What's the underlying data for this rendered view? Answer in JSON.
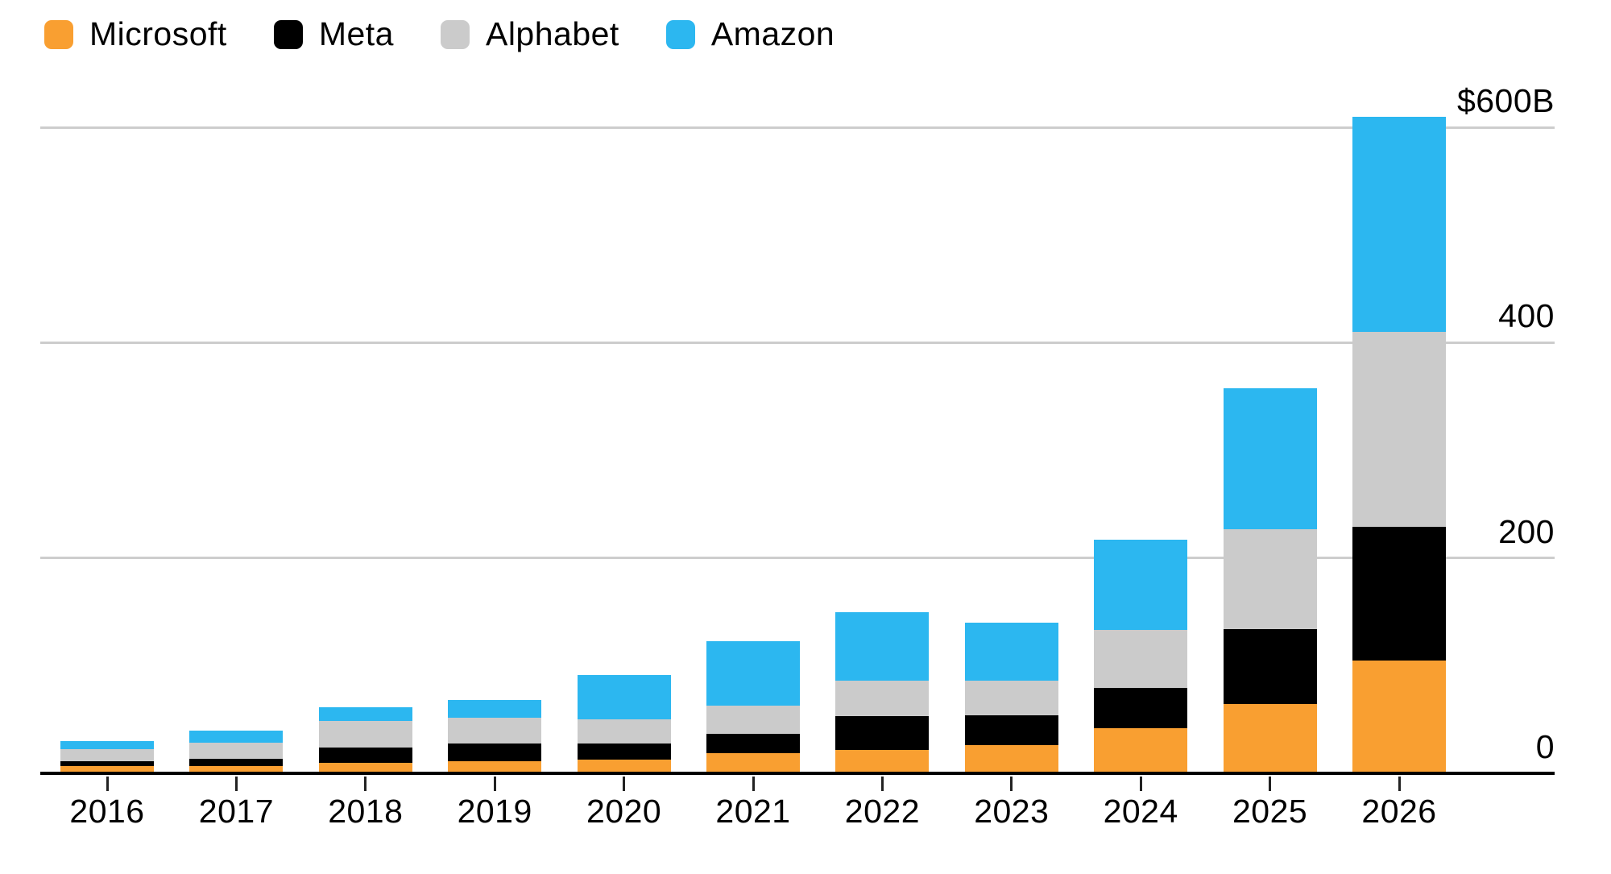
{
  "app": {
    "background": "#ffffff",
    "text_color": "#000000"
  },
  "chart_data": {
    "type": "bar",
    "stacked": true,
    "title": "",
    "categories": [
      "2016",
      "2017",
      "2018",
      "2019",
      "2020",
      "2021",
      "2022",
      "2023",
      "2024",
      "2025",
      "2026"
    ],
    "series": [
      {
        "name": "Microsoft",
        "color": "#F99F31",
        "values": [
          7,
          7,
          10,
          11.5,
          13,
          19,
          22,
          26,
          42,
          64,
          105
        ]
      },
      {
        "name": "Meta",
        "color": "#000000",
        "values": [
          4.5,
          6.5,
          14,
          16,
          15,
          18,
          31,
          28,
          37.5,
          70,
          124
        ]
      },
      {
        "name": "Alphabet",
        "color": "#CBCBCB",
        "values": [
          11,
          15,
          25,
          24.5,
          22.5,
          25.5,
          33,
          32,
          54,
          93,
          181
        ]
      },
      {
        "name": "Amazon",
        "color": "#2CB7F0",
        "values": [
          7.5,
          11.5,
          12.5,
          16,
          40.5,
          60.5,
          63.5,
          54,
          83.5,
          131,
          200
        ]
      }
    ],
    "totals": [
      30,
      40,
      61.5,
      68,
      91,
      123,
      149.5,
      140,
      217,
      358,
      610
    ],
    "xlabel": "",
    "ylabel": "",
    "ylim": [
      0,
      600
    ],
    "y_ticks": [
      {
        "label": "$600B",
        "value": 600
      },
      {
        "label": "400",
        "value": 400
      },
      {
        "label": "200",
        "value": 200
      },
      {
        "label": "0",
        "value": 0
      }
    ],
    "grid": "horizontal",
    "gridline_color": "#cdcdcd",
    "axis_color": "#000000",
    "legend_position": "top-left",
    "units": "billions of US dollars"
  }
}
